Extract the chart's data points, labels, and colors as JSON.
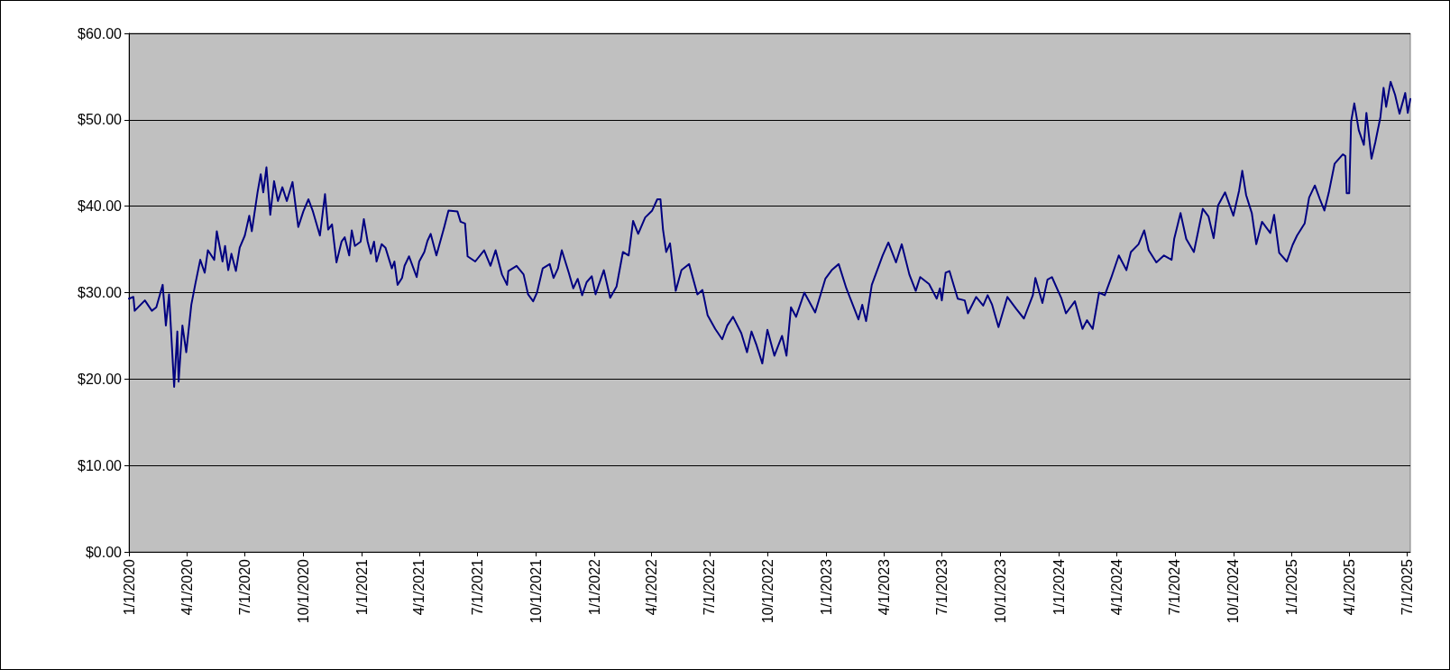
{
  "chart_data": {
    "type": "line",
    "x": [
      "2020-01-01",
      "2020-01-08",
      "2020-01-10",
      "2020-01-26",
      "2020-02-06",
      "2020-02-13",
      "2020-02-23",
      "2020-02-28",
      "2020-03-04",
      "2020-03-12",
      "2020-03-17",
      "2020-03-19",
      "2020-03-25",
      "2020-03-31",
      "2020-04-08",
      "2020-04-14",
      "2020-04-22",
      "2020-04-29",
      "2020-05-04",
      "2020-05-14",
      "2020-05-18",
      "2020-05-27",
      "2020-05-31",
      "2020-06-05",
      "2020-06-10",
      "2020-06-17",
      "2020-06-23",
      "2020-07-01",
      "2020-07-08",
      "2020-07-12",
      "2020-07-21",
      "2020-07-26",
      "2020-07-30",
      "2020-08-04",
      "2020-08-10",
      "2020-08-16",
      "2020-08-22",
      "2020-08-29",
      "2020-09-05",
      "2020-09-14",
      "2020-09-23",
      "2020-10-01",
      "2020-10-09",
      "2020-10-16",
      "2020-10-27",
      "2020-11-04",
      "2020-11-09",
      "2020-11-15",
      "2020-11-22",
      "2020-11-30",
      "2020-12-05",
      "2020-12-12",
      "2020-12-16",
      "2020-12-21",
      "2020-12-30",
      "2021-01-04",
      "2021-01-10",
      "2021-01-15",
      "2021-01-20",
      "2021-01-24",
      "2021-02-01",
      "2021-02-07",
      "2021-02-17",
      "2021-02-21",
      "2021-02-26",
      "2021-03-05",
      "2021-03-09",
      "2021-03-16",
      "2021-03-23",
      "2021-03-28",
      "2021-04-01",
      "2021-04-09",
      "2021-04-14",
      "2021-04-19",
      "2021-04-28",
      "2021-05-10",
      "2021-05-17",
      "2021-05-31",
      "2021-06-05",
      "2021-06-12",
      "2021-06-16",
      "2021-06-28",
      "2021-07-12",
      "2021-07-22",
      "2021-07-30",
      "2021-08-09",
      "2021-08-17",
      "2021-08-19",
      "2021-09-01",
      "2021-09-12",
      "2021-09-19",
      "2021-09-27",
      "2021-10-03",
      "2021-10-12",
      "2021-10-23",
      "2021-10-29",
      "2021-11-05",
      "2021-11-11",
      "2021-11-22",
      "2021-11-29",
      "2021-12-06",
      "2021-12-13",
      "2021-12-20",
      "2021-12-28",
      "2022-01-03",
      "2022-01-16",
      "2022-01-26",
      "2022-02-05",
      "2022-02-15",
      "2022-02-24",
      "2022-03-03",
      "2022-03-11",
      "2022-03-22",
      "2022-04-02",
      "2022-04-10",
      "2022-04-15",
      "2022-04-19",
      "2022-04-24",
      "2022-04-30",
      "2022-05-09",
      "2022-05-18",
      "2022-05-30",
      "2022-06-12",
      "2022-06-20",
      "2022-06-28",
      "2022-07-10",
      "2022-07-21",
      "2022-07-29",
      "2022-08-07",
      "2022-08-20",
      "2022-08-29",
      "2022-09-05",
      "2022-09-13",
      "2022-09-22",
      "2022-09-30",
      "2022-10-11",
      "2022-10-23",
      "2022-10-30",
      "2022-11-06",
      "2022-11-14",
      "2022-11-27",
      "2022-12-14",
      "2022-12-30",
      "2023-01-09",
      "2023-01-20",
      "2023-02-01",
      "2023-02-20",
      "2023-02-26",
      "2023-03-04",
      "2023-03-13",
      "2023-03-30",
      "2023-04-08",
      "2023-04-20",
      "2023-04-29",
      "2023-05-11",
      "2023-05-21",
      "2023-05-28",
      "2023-06-11",
      "2023-06-23",
      "2023-06-28",
      "2023-07-01",
      "2023-07-07",
      "2023-07-13",
      "2023-07-26",
      "2023-08-06",
      "2023-08-11",
      "2023-08-24",
      "2023-09-04",
      "2023-09-11",
      "2023-09-18",
      "2023-09-28",
      "2023-10-12",
      "2023-10-26",
      "2023-11-07",
      "2023-11-21",
      "2023-11-25",
      "2023-12-06",
      "2023-12-14",
      "2023-12-21",
      "2024-01-05",
      "2024-01-12",
      "2024-01-26",
      "2024-02-07",
      "2024-02-14",
      "2024-02-23",
      "2024-03-04",
      "2024-03-13",
      "2024-03-23",
      "2024-04-04",
      "2024-04-16",
      "2024-04-23",
      "2024-05-05",
      "2024-05-14",
      "2024-05-21",
      "2024-06-02",
      "2024-06-14",
      "2024-06-26",
      "2024-06-30",
      "2024-07-10",
      "2024-07-19",
      "2024-07-31",
      "2024-08-14",
      "2024-08-23",
      "2024-08-31",
      "2024-09-07",
      "2024-09-18",
      "2024-10-01",
      "2024-10-10",
      "2024-10-15",
      "2024-10-21",
      "2024-10-30",
      "2024-11-06",
      "2024-11-15",
      "2024-11-28",
      "2024-12-04",
      "2024-12-12",
      "2024-12-24",
      "2025-01-02",
      "2025-01-09",
      "2025-01-21",
      "2025-01-28",
      "2025-02-06",
      "2025-02-14",
      "2025-02-21",
      "2025-02-28",
      "2025-03-09",
      "2025-03-22",
      "2025-03-26",
      "2025-03-28",
      "2025-04-01",
      "2025-04-04",
      "2025-04-09",
      "2025-04-16",
      "2025-04-24",
      "2025-04-28",
      "2025-05-06",
      "2025-05-12",
      "2025-05-20",
      "2025-05-25",
      "2025-05-29",
      "2025-06-05",
      "2025-06-12",
      "2025-06-19",
      "2025-06-28",
      "2025-07-02",
      "2025-07-06"
    ],
    "series": [
      {
        "color": "#000080",
        "values": [
          29.3,
          29.5,
          27.9,
          29.1,
          27.9,
          28.3,
          30.9,
          26.2,
          29.8,
          19.1,
          25.5,
          19.7,
          26.2,
          23.1,
          28.6,
          30.9,
          33.8,
          32.3,
          34.9,
          33.8,
          37.1,
          33.6,
          35.4,
          32.6,
          34.5,
          32.5,
          35.2,
          36.6,
          38.9,
          37.1,
          41.6,
          43.7,
          41.6,
          44.5,
          39.0,
          42.9,
          40.6,
          42.2,
          40.6,
          42.8,
          37.6,
          39.4,
          40.8,
          39.4,
          36.6,
          41.4,
          37.3,
          37.9,
          33.5,
          35.9,
          36.4,
          34.3,
          37.2,
          35.4,
          35.9,
          38.5,
          35.9,
          34.5,
          35.9,
          33.6,
          35.6,
          35.2,
          32.8,
          33.6,
          30.9,
          31.7,
          33.1,
          34.2,
          32.8,
          31.8,
          33.6,
          34.7,
          36.0,
          36.8,
          34.3,
          37.5,
          39.5,
          39.4,
          38.2,
          38.0,
          34.2,
          33.6,
          34.9,
          33.1,
          34.9,
          32.1,
          30.9,
          32.5,
          33.1,
          32.1,
          29.8,
          29.0,
          30.0,
          32.8,
          33.3,
          31.7,
          32.8,
          34.9,
          32.3,
          30.5,
          31.6,
          29.7,
          31.2,
          31.9,
          29.8,
          32.6,
          29.4,
          30.7,
          34.7,
          34.3,
          38.3,
          36.8,
          38.7,
          39.5,
          40.8,
          40.8,
          37.3,
          34.7,
          35.7,
          30.2,
          32.6,
          33.3,
          29.8,
          30.3,
          27.4,
          25.8,
          24.6,
          26.2,
          27.2,
          25.3,
          23.1,
          25.5,
          23.9,
          21.8,
          25.7,
          22.7,
          25.0,
          22.7,
          28.3,
          27.2,
          30.0,
          27.7,
          31.6,
          32.6,
          33.3,
          30.5,
          26.9,
          28.6,
          26.7,
          30.9,
          34.3,
          35.8,
          33.5,
          35.6,
          32.1,
          30.2,
          31.8,
          31.0,
          29.3,
          30.5,
          29.1,
          32.3,
          32.5,
          29.3,
          29.1,
          27.6,
          29.5,
          28.5,
          29.7,
          28.6,
          26.0,
          29.5,
          28.1,
          27.0,
          29.7,
          31.7,
          28.8,
          31.5,
          31.8,
          29.3,
          27.6,
          29.0,
          25.8,
          26.8,
          25.8,
          30.0,
          29.7,
          31.7,
          34.3,
          32.6,
          34.7,
          35.6,
          37.2,
          34.9,
          33.5,
          34.3,
          33.8,
          36.2,
          39.2,
          36.2,
          34.7,
          39.7,
          38.8,
          36.3,
          40.1,
          41.6,
          38.9,
          41.8,
          44.1,
          41.3,
          39.2,
          35.6,
          38.2,
          36.9,
          39.0,
          34.6,
          33.6,
          35.5,
          36.6,
          38.0,
          41.0,
          42.4,
          40.8,
          39.5,
          41.6,
          44.9,
          46.0,
          45.8,
          41.5,
          41.5,
          49.8,
          51.9,
          48.8,
          47.1,
          50.8,
          45.5,
          47.4,
          50.3,
          53.7,
          51.5,
          54.4,
          52.9,
          50.7,
          53.1,
          50.8,
          52.4
        ]
      }
    ],
    "xlim": [
      "2020-01-01",
      "2025-07-06"
    ],
    "xticks": [
      {
        "value": "2020-01-01",
        "label": "1/1/2020"
      },
      {
        "value": "2020-04-01",
        "label": "4/1/2020"
      },
      {
        "value": "2020-07-01",
        "label": "7/1/2020"
      },
      {
        "value": "2020-10-01",
        "label": "10/1/2020"
      },
      {
        "value": "2021-01-01",
        "label": "1/1/2021"
      },
      {
        "value": "2021-04-01",
        "label": "4/1/2021"
      },
      {
        "value": "2021-07-01",
        "label": "7/1/2021"
      },
      {
        "value": "2021-10-01",
        "label": "10/1/2021"
      },
      {
        "value": "2022-01-01",
        "label": "1/1/2022"
      },
      {
        "value": "2022-04-01",
        "label": "4/1/2022"
      },
      {
        "value": "2022-07-01",
        "label": "7/1/2022"
      },
      {
        "value": "2022-10-01",
        "label": "10/1/2022"
      },
      {
        "value": "2023-01-01",
        "label": "1/1/2023"
      },
      {
        "value": "2023-04-01",
        "label": "4/1/2023"
      },
      {
        "value": "2023-07-01",
        "label": "7/1/2023"
      },
      {
        "value": "2023-10-01",
        "label": "10/1/2023"
      },
      {
        "value": "2024-01-01",
        "label": "1/1/2024"
      },
      {
        "value": "2024-04-01",
        "label": "4/1/2024"
      },
      {
        "value": "2024-07-01",
        "label": "7/1/2024"
      },
      {
        "value": "2024-10-01",
        "label": "10/1/2024"
      },
      {
        "value": "2025-01-01",
        "label": "1/1/2025"
      },
      {
        "value": "2025-04-01",
        "label": "4/1/2025"
      },
      {
        "value": "2025-07-01",
        "label": "7/1/2025"
      }
    ],
    "ylim": [
      0,
      60
    ],
    "yticks": [
      {
        "value": 0,
        "label": "$0.00"
      },
      {
        "value": 10,
        "label": "$10.00"
      },
      {
        "value": 20,
        "label": "$20.00"
      },
      {
        "value": 30,
        "label": "$30.00"
      },
      {
        "value": 40,
        "label": "$40.00"
      },
      {
        "value": 50,
        "label": "$50.00"
      },
      {
        "value": 60,
        "label": "$60.00"
      }
    ],
    "grid": "y",
    "marker": "none",
    "line_style": "solid"
  }
}
